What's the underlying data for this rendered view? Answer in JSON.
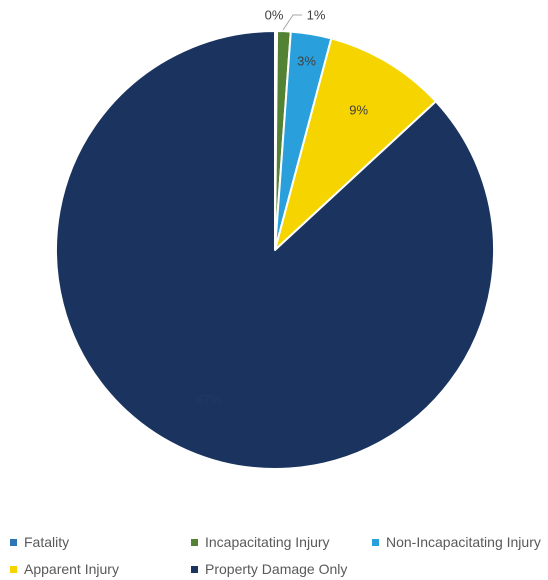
{
  "chart_data": {
    "type": "pie",
    "title": "",
    "legend_position": "bottom",
    "slices": [
      {
        "label": "Fatality",
        "value": 0,
        "display": "0%",
        "color": "#2e75b6"
      },
      {
        "label": "Incapacitating Injury",
        "value": 1,
        "display": "1%",
        "color": "#548235"
      },
      {
        "label": "Non-Incapacitating Injury",
        "value": 3,
        "display": "3%",
        "color": "#29a0dc"
      },
      {
        "label": "Apparent Injury",
        "value": 9,
        "display": "9%",
        "color": "#f5d400"
      },
      {
        "label": "Property Damage Only",
        "value": 87,
        "display": "87%",
        "color": "#1b345f"
      }
    ]
  }
}
